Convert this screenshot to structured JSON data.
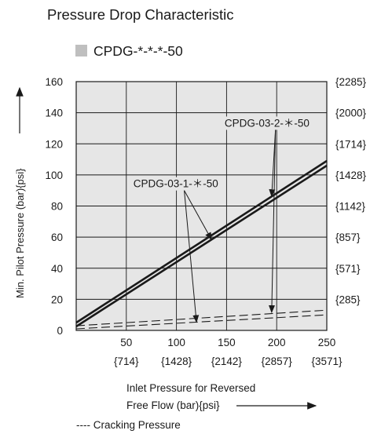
{
  "chart_data": {
    "type": "line",
    "title": "Pressure Drop Characteristic",
    "legend_label": "CPDG-*-*-*-50",
    "ylabel": "Min. Pilot Pressure (bar){psi}",
    "xlabel_line1": "Inlet Pressure for Reversed",
    "xlabel_line2": "Free Flow (bar){psi}",
    "dashed_legend": "---- Cracking Pressure",
    "xlim": [
      0,
      250
    ],
    "ylim": [
      0,
      160
    ],
    "grid": true,
    "x_ticks": [
      {
        "value": 50,
        "label": "50",
        "psi": "{714}"
      },
      {
        "value": 100,
        "label": "100",
        "psi": "{1428}"
      },
      {
        "value": 150,
        "label": "150",
        "psi": "{2142}"
      },
      {
        "value": 200,
        "label": "200",
        "psi": "{2857}"
      },
      {
        "value": 250,
        "label": "250",
        "psi": "{3571}"
      }
    ],
    "y_ticks": [
      {
        "value": 0,
        "label": "0"
      },
      {
        "value": 20,
        "label": "20"
      },
      {
        "value": 40,
        "label": "40"
      },
      {
        "value": 60,
        "label": "60"
      },
      {
        "value": 80,
        "label": "80"
      },
      {
        "value": 100,
        "label": "100"
      },
      {
        "value": 120,
        "label": "120"
      },
      {
        "value": 140,
        "label": "140"
      },
      {
        "value": 160,
        "label": "160"
      }
    ],
    "y_ticks_right": [
      {
        "value": 20,
        "label": "{285}"
      },
      {
        "value": 40,
        "label": "{571}"
      },
      {
        "value": 60,
        "label": "{857}"
      },
      {
        "value": 80,
        "label": "{1142}"
      },
      {
        "value": 100,
        "label": "{1428}"
      },
      {
        "value": 120,
        "label": "{1714}"
      },
      {
        "value": 140,
        "label": "{2000}"
      },
      {
        "value": 160,
        "label": "{2285}"
      }
    ],
    "series": [
      {
        "name": "CPDG-03-1-＊-50",
        "style": "solid",
        "x": [
          0,
          250
        ],
        "y": [
          2.5,
          106
        ]
      },
      {
        "name": "CPDG-03-2-＊-50",
        "style": "solid",
        "x": [
          0,
          250
        ],
        "y": [
          5,
          109
        ]
      },
      {
        "name": "CPDG-03-1-＊-50",
        "style": "dashed",
        "x": [
          0,
          250
        ],
        "y": [
          1,
          10
        ]
      },
      {
        "name": "CPDG-03-2-＊-50",
        "style": "dashed",
        "x": [
          0,
          250
        ],
        "y": [
          3,
          13
        ]
      }
    ],
    "annotations": [
      {
        "text": "CPDG-03-2-＊-50",
        "x": 148,
        "y": 131,
        "pointers": [
          {
            "x": 195,
            "y": 86.2
          },
          {
            "x": 195,
            "y": 11.6
          }
        ]
      },
      {
        "text": "CPDG-03-1-＊-50",
        "x": 57,
        "y": 92,
        "pointers": [
          {
            "x": 135,
            "y": 58.4
          },
          {
            "x": 120,
            "y": 5.3
          }
        ]
      }
    ],
    "colors": {
      "plot_bg": "#e6e6e6",
      "line": "#1a1a1a",
      "legend_marker": "#bfbfbf"
    }
  }
}
